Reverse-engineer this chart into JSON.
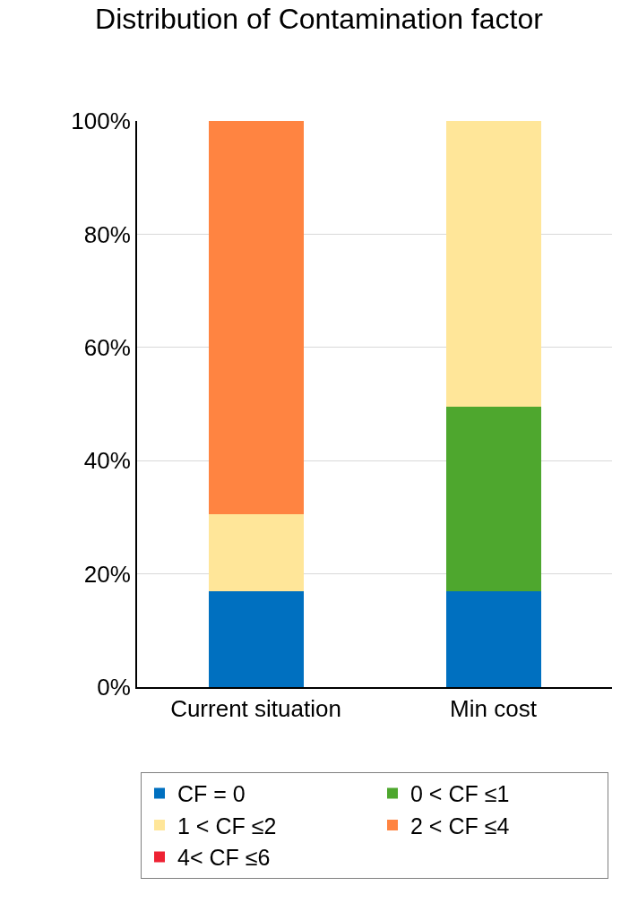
{
  "chart_data": {
    "type": "bar",
    "title": "Distribution of Contamination factor",
    "categories": [
      "Current situation",
      "Min cost"
    ],
    "stacked": true,
    "series": [
      {
        "name": "CF = 0",
        "color": "#0070c0",
        "values": [
          17,
          17
        ]
      },
      {
        "name": "0 < CF ≤1",
        "color": "#4ea72e",
        "values": [
          0,
          32.6
        ]
      },
      {
        "name": "1 < CF ≤2",
        "color": "#ffe699",
        "values": [
          13.6,
          50.4
        ]
      },
      {
        "name": "2 < CF ≤4",
        "color": "#ff8441",
        "values": [
          69.4,
          0
        ]
      },
      {
        "name": "4< CF ≤6",
        "color": "#ee2233",
        "values": [
          0,
          0
        ]
      }
    ],
    "ylim": [
      0,
      100
    ],
    "yticks": [
      {
        "value": 0,
        "label": "0%"
      },
      {
        "value": 20,
        "label": "20%"
      },
      {
        "value": 40,
        "label": "40%"
      },
      {
        "value": 60,
        "label": "60%"
      },
      {
        "value": 80,
        "label": "80%"
      },
      {
        "value": 100,
        "label": "100%"
      }
    ],
    "grid": "y",
    "legend": "bottom"
  }
}
